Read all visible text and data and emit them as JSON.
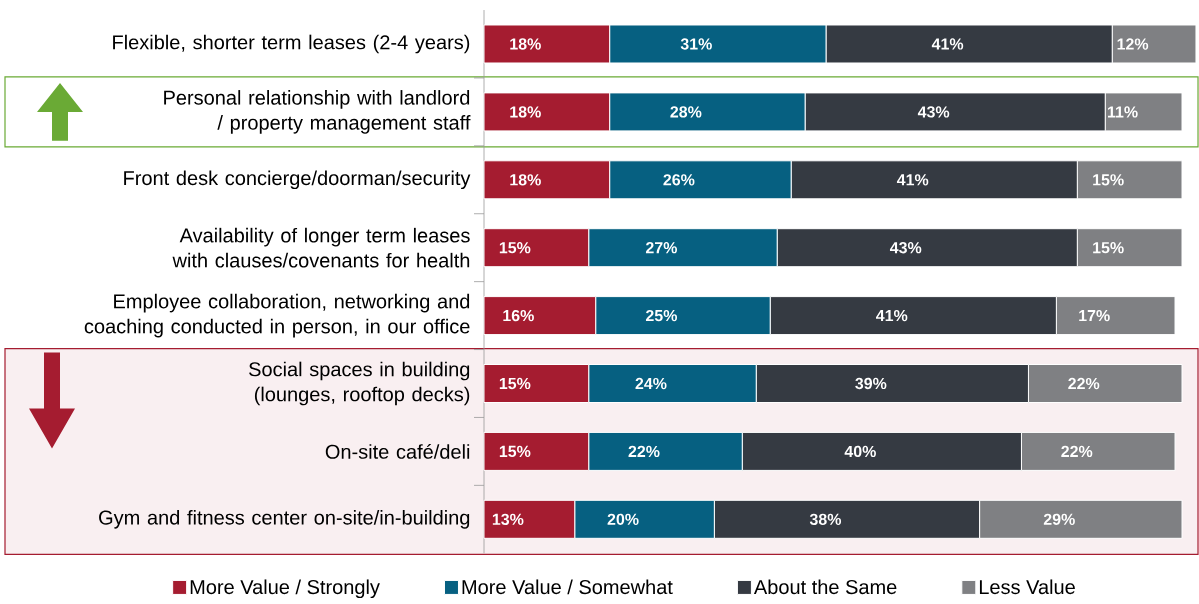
{
  "chart_data": {
    "type": "bar",
    "orientation": "horizontal",
    "stacked": true,
    "legend": "bottom",
    "categories": [
      "Flexible, shorter term leases (2-4 years)",
      "Personal relationship with landlord / property management staff",
      "Front desk concierge/doorman/security",
      "Availability of longer term leases with clauses/covenants for health",
      "Employee collaboration, networking and coaching conducted in person, in our office",
      "Social spaces in building (lounges, rooftop decks)",
      "On-site café/deli",
      "Gym and fitness center on-site/in-building"
    ],
    "series": [
      {
        "name": "More Value / Strongly",
        "color": "#a51c30",
        "values": [
          18,
          18,
          18,
          15,
          16,
          15,
          15,
          13
        ],
        "value_labels": [
          "18%",
          "18%",
          "18%",
          "15%",
          "16%",
          "15%",
          "15%",
          "13%"
        ]
      },
      {
        "name": "More Value / Somewhat",
        "color": "#066081",
        "values": [
          31,
          28,
          26,
          27,
          25,
          24,
          22,
          20
        ],
        "value_labels": [
          "31%",
          "28%",
          "26%",
          "27%",
          "25%",
          "24%",
          "22%",
          "20%"
        ]
      },
      {
        "name": "About the Same",
        "color": "#353a42",
        "values": [
          41,
          43,
          41,
          43,
          41,
          39,
          40,
          38
        ],
        "value_labels": [
          "41%",
          "43%",
          "41%",
          "43%",
          "41%",
          "39%",
          "40%",
          "38%"
        ]
      },
      {
        "name": "Less Value",
        "color": "#7f8083",
        "values": [
          12,
          11,
          15,
          15,
          17,
          22,
          22,
          29
        ],
        "value_labels": [
          "12%",
          "11%",
          "15%",
          "15%",
          "17%",
          "22%",
          "22%",
          "29%"
        ]
      }
    ],
    "bands": [
      {
        "axis": "y",
        "from": "Personal relationship with landlord / property management staff",
        "to": "Personal relationship with landlord / property management staff",
        "color": "#6aaa35"
      },
      {
        "axis": "y",
        "from": "Social spaces in building (lounges, rooftop decks)",
        "to": "Gym and fitness center on-site/in-building",
        "color": "#a51c30"
      }
    ]
  }
}
